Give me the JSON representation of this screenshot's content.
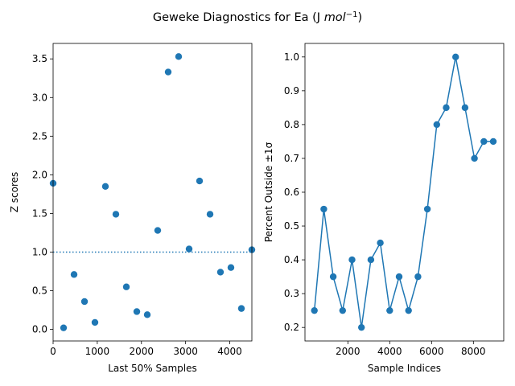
{
  "figure": {
    "suptitle": "Geweke Diagnostics for Ea (J mol⁻¹)",
    "suptitle_parts": {
      "lead": "Geweke Diagnostics for Ea (J ",
      "italic": "mol",
      "exponent": "−1",
      "tail": ")"
    }
  },
  "colors": {
    "series": "#1f77b4",
    "axis": "#000000"
  },
  "chart_data": [
    {
      "type": "scatter",
      "xlabel": "Last 50% Samples",
      "ylabel": "Z scores",
      "xlim": [
        0,
        4500
      ],
      "ylim": [
        -0.15,
        3.7
      ],
      "xticks": [
        0,
        1000,
        2000,
        3000,
        4000
      ],
      "yticks": [
        0.0,
        0.5,
        1.0,
        1.5,
        2.0,
        2.5,
        3.0,
        3.5
      ],
      "xtick_labels": [
        "0",
        "1000",
        "2000",
        "3000",
        "4000"
      ],
      "ytick_labels": [
        "0.0",
        "0.5",
        "1.0",
        "1.5",
        "2.0",
        "2.5",
        "3.0",
        "3.5"
      ],
      "reference_line": {
        "y": 1.0,
        "style": "dotted"
      },
      "x": [
        0,
        237,
        474,
        711,
        947,
        1184,
        1421,
        1658,
        1895,
        2132,
        2368,
        2605,
        2842,
        3079,
        3316,
        3553,
        3789,
        4026,
        4263,
        4500
      ],
      "y": [
        1.89,
        0.02,
        0.71,
        0.36,
        0.09,
        1.85,
        1.49,
        0.55,
        0.23,
        0.19,
        1.28,
        3.33,
        3.53,
        1.04,
        1.92,
        1.49,
        0.74,
        0.8,
        0.27,
        1.03
      ]
    },
    {
      "type": "line",
      "xlabel": "Sample Indices",
      "ylabel": "Percent Outside ±1σ",
      "xlim": [
        -50,
        9450
      ],
      "ylim": [
        0.16,
        1.04
      ],
      "xticks": [
        2000,
        4000,
        6000,
        8000
      ],
      "yticks": [
        0.2,
        0.3,
        0.4,
        0.5,
        0.6,
        0.7,
        0.8,
        0.9,
        1.0
      ],
      "xtick_labels": [
        "2000",
        "4000",
        "6000",
        "8000"
      ],
      "ytick_labels": [
        "0.2",
        "0.3",
        "0.4",
        "0.5",
        "0.6",
        "0.7",
        "0.8",
        "0.9",
        "1.0"
      ],
      "markers": true,
      "x": [
        400,
        850,
        1300,
        1750,
        2200,
        2650,
        3100,
        3550,
        4000,
        4450,
        4900,
        5350,
        5800,
        6250,
        6700,
        7150,
        7600,
        8050,
        8500,
        8950
      ],
      "y": [
        0.25,
        0.55,
        0.35,
        0.25,
        0.4,
        0.2,
        0.4,
        0.45,
        0.25,
        0.35,
        0.25,
        0.35,
        0.55,
        0.8,
        0.85,
        1.0,
        0.85,
        0.7,
        0.75,
        0.75
      ]
    }
  ]
}
